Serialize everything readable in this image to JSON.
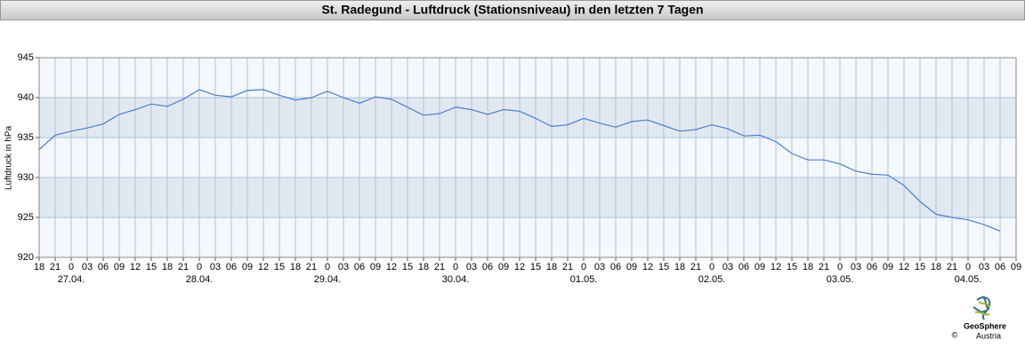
{
  "chart_data": {
    "type": "line",
    "title": "St. Radegund - Luftdruck (Stationsniveau) in den letzten 7 Tagen",
    "ylabel": "Luftdruck in hPa",
    "categories": [
      "18",
      "21",
      "0",
      "03",
      "06",
      "09",
      "12",
      "15",
      "18",
      "21",
      "0",
      "03",
      "06",
      "09",
      "12",
      "15",
      "18",
      "21",
      "0",
      "03",
      "06",
      "09",
      "12",
      "15",
      "18",
      "21",
      "0",
      "03",
      "06",
      "09",
      "12",
      "15",
      "18",
      "21",
      "0",
      "03",
      "06",
      "09",
      "12",
      "15",
      "18",
      "21",
      "0",
      "03",
      "06",
      "09",
      "12",
      "15",
      "18",
      "21",
      "0",
      "03",
      "06",
      "09",
      "12",
      "15",
      "18",
      "21",
      "0",
      "03",
      "06",
      "09"
    ],
    "dates": [
      "27.04.",
      "28.04.",
      "29.04.",
      "30.04.",
      "01.05.",
      "02.05.",
      "03.05.",
      "04.05."
    ],
    "color": "#4a7fd0",
    "values": [
      933.5,
      935.3,
      935.8,
      936.2,
      936.7,
      937.9,
      938.5,
      939.2,
      938.9,
      939.8,
      941.0,
      940.3,
      940.1,
      940.9,
      941.0,
      940.3,
      939.7,
      940.0,
      940.8,
      940.0,
      939.3,
      940.1,
      939.8,
      938.8,
      937.8,
      938.0,
      938.8,
      938.5,
      937.9,
      938.5,
      938.3,
      937.4,
      936.4,
      936.6,
      937.4,
      936.8,
      936.3,
      937.0,
      937.2,
      936.5,
      935.8,
      936.0,
      936.6,
      936.1,
      935.2,
      935.3,
      934.5,
      933.0,
      932.2,
      932.2,
      931.7,
      930.8,
      930.4,
      930.3,
      929.0,
      927.0,
      925.4,
      925.0,
      924.7,
      924.1,
      923.3,
      null
    ],
    "ylim": [
      920,
      945
    ],
    "yticks": [
      920,
      925,
      930,
      935,
      940,
      945
    ],
    "grid": true
  },
  "footer": {
    "brand": "GeoSphere",
    "sub": "Austria",
    "copyright": "©"
  }
}
